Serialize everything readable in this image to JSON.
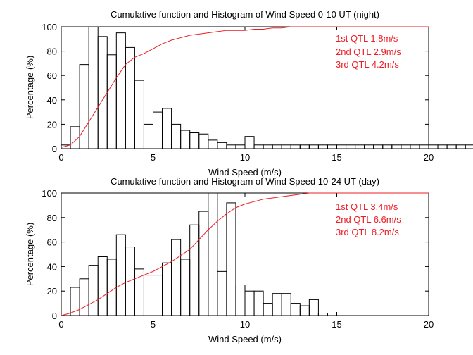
{
  "chart_data": [
    {
      "type": "histogram+line",
      "title": "Cumulative function and Histogram of Wind Speed 0-10 UT (night)",
      "xlabel": "Wind Speed (m/s)",
      "ylabel": "Percentage (%)",
      "xlim": [
        0,
        20
      ],
      "ylim": [
        0,
        100
      ],
      "xticks": [
        0,
        5,
        10,
        15,
        20
      ],
      "yticks": [
        0,
        20,
        40,
        60,
        80,
        100
      ],
      "histogram": {
        "bin_width": 0.5,
        "edges_start": 0,
        "values": [
          3,
          18,
          69,
          100,
          92,
          77,
          95,
          83,
          56,
          20,
          30,
          33,
          20,
          15,
          13,
          12,
          7,
          5,
          3,
          3,
          10,
          3,
          3,
          3,
          3,
          3,
          3,
          3,
          3,
          3,
          3,
          3,
          3,
          3,
          3,
          3,
          3,
          3,
          3,
          3,
          3,
          3,
          3,
          3,
          3,
          3,
          3,
          3,
          3,
          3
        ]
      },
      "cumulative": {
        "x": [
          0,
          0.5,
          1.0,
          1.5,
          2.0,
          2.5,
          3.0,
          3.5,
          4.0,
          4.5,
          5.0,
          5.5,
          6.0,
          6.5,
          7.0,
          7.5,
          8.0,
          8.5,
          9.0,
          9.5,
          10.0,
          10.5,
          11.0,
          11.5,
          12.0,
          12.5,
          13.0,
          14.0,
          20.0
        ],
        "y": [
          1,
          3,
          10,
          22,
          34,
          46,
          58,
          69,
          75,
          78,
          82,
          86,
          89,
          91,
          93,
          94,
          95,
          96,
          97,
          97,
          97,
          98,
          98,
          99,
          99,
          100,
          100,
          100,
          100
        ]
      },
      "annotations": [
        "1st QTL 1.8m/s",
        "2nd QTL 2.9m/s",
        "3rd QTL 4.2m/s"
      ]
    },
    {
      "type": "histogram+line",
      "title": "Cumulative function and Histogram of Wind Speed 10-24 UT (day)",
      "xlabel": "Wind Speed (m/s)",
      "ylabel": "Percentage (%)",
      "xlim": [
        0,
        20
      ],
      "ylim": [
        0,
        100
      ],
      "xticks": [
        0,
        5,
        10,
        15,
        20
      ],
      "yticks": [
        0,
        20,
        40,
        60,
        80,
        100
      ],
      "histogram": {
        "bin_width": 0.5,
        "edges_start": 0,
        "values": [
          0,
          23,
          30,
          41,
          48,
          46,
          66,
          56,
          38,
          33,
          33,
          43,
          62,
          46,
          74,
          85,
          100,
          36,
          92,
          25,
          20,
          20,
          10,
          18,
          18,
          10,
          8,
          13,
          2,
          0,
          0,
          0,
          0,
          0,
          0,
          0,
          0,
          0,
          0,
          0
        ]
      },
      "cumulative": {
        "x": [
          0,
          0.5,
          1.0,
          1.5,
          2.0,
          2.5,
          3.0,
          3.5,
          4.0,
          4.5,
          5.0,
          5.5,
          6.0,
          6.5,
          7.0,
          7.5,
          8.0,
          8.5,
          9.0,
          9.5,
          10.0,
          10.5,
          11.0,
          11.5,
          12.0,
          12.5,
          13.0,
          13.5,
          14.0,
          20.0
        ],
        "y": [
          0,
          2,
          5,
          9,
          13,
          18,
          23,
          27,
          30,
          33,
          36,
          40,
          44,
          49,
          54,
          62,
          70,
          77,
          83,
          88,
          91,
          93,
          95,
          96,
          97,
          98,
          99,
          100,
          100,
          100
        ]
      },
      "annotations": [
        "1st QTL 3.4m/s",
        "2nd QTL 6.6m/s",
        "3rd QTL 8.2m/s"
      ]
    }
  ]
}
